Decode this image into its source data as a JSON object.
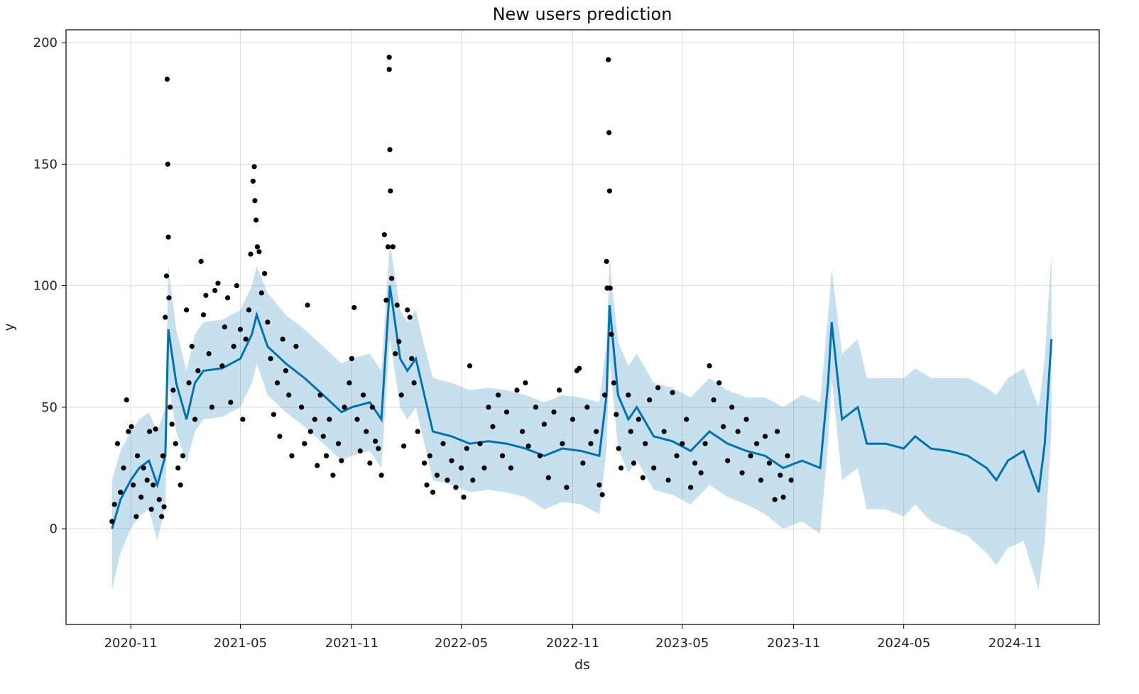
{
  "chart_data": {
    "type": "line",
    "title": "New users prediction",
    "xlabel": "ds",
    "ylabel": "y",
    "xlim": [
      "2020-07-17",
      "2025-03-20"
    ],
    "ylim": [
      -39.4,
      205.3
    ],
    "grid": true,
    "x_ticks": [
      "2020-11",
      "2021-05",
      "2021-11",
      "2022-05",
      "2022-11",
      "2023-05",
      "2023-11",
      "2024-05",
      "2024-11"
    ],
    "y_ticks": [
      0,
      50,
      100,
      150,
      200
    ],
    "colors": {
      "forecast": "#0072B2",
      "band": "#0072B2",
      "actual": "#000000",
      "grid": "#dddddd"
    },
    "forecast": {
      "name": "yhat",
      "points": [
        [
          "2020-10-01",
          0,
          -25,
          20
        ],
        [
          "2020-10-15",
          12,
          -10,
          32
        ],
        [
          "2020-11-01",
          20,
          0,
          40
        ],
        [
          "2020-11-15",
          25,
          5,
          45
        ],
        [
          "2020-12-01",
          28,
          8,
          48
        ],
        [
          "2020-12-15",
          18,
          -5,
          40
        ],
        [
          "2020-12-28",
          30,
          10,
          50
        ],
        [
          "2021-01-02",
          82,
          60,
          108
        ],
        [
          "2021-01-15",
          60,
          40,
          82
        ],
        [
          "2021-02-01",
          45,
          27,
          65
        ],
        [
          "2021-02-15",
          60,
          40,
          80
        ],
        [
          "2021-03-01",
          65,
          45,
          85
        ],
        [
          "2021-04-01",
          66,
          46,
          86
        ],
        [
          "2021-05-01",
          70,
          50,
          90
        ],
        [
          "2021-05-20",
          80,
          60,
          100
        ],
        [
          "2021-05-28",
          88,
          68,
          108
        ],
        [
          "2021-06-15",
          75,
          55,
          97
        ],
        [
          "2021-07-15",
          68,
          48,
          88
        ],
        [
          "2021-08-15",
          62,
          42,
          82
        ],
        [
          "2021-09-15",
          55,
          35,
          75
        ],
        [
          "2021-10-15",
          48,
          28,
          68
        ],
        [
          "2021-11-01",
          50,
          30,
          70
        ],
        [
          "2021-12-01",
          52,
          32,
          72
        ],
        [
          "2021-12-20",
          45,
          25,
          65
        ],
        [
          "2022-01-03",
          100,
          78,
          118
        ],
        [
          "2022-01-20",
          70,
          50,
          90
        ],
        [
          "2022-02-01",
          65,
          45,
          85
        ],
        [
          "2022-02-15",
          70,
          50,
          90
        ],
        [
          "2022-03-01",
          55,
          35,
          75
        ],
        [
          "2022-03-15",
          40,
          20,
          62
        ],
        [
          "2022-04-15",
          38,
          18,
          60
        ],
        [
          "2022-05-15",
          35,
          15,
          57
        ],
        [
          "2022-06-15",
          36,
          16,
          58
        ],
        [
          "2022-07-15",
          35,
          15,
          57
        ],
        [
          "2022-08-15",
          33,
          13,
          55
        ],
        [
          "2022-09-15",
          30,
          8,
          52
        ],
        [
          "2022-10-15",
          33,
          11,
          55
        ],
        [
          "2022-11-15",
          32,
          10,
          54
        ],
        [
          "2022-12-15",
          30,
          6,
          52
        ],
        [
          "2022-12-27",
          55,
          33,
          77
        ],
        [
          "2023-01-01",
          92,
          70,
          110
        ],
        [
          "2023-01-15",
          55,
          33,
          77
        ],
        [
          "2023-02-01",
          45,
          23,
          67
        ],
        [
          "2023-02-15",
          50,
          28,
          72
        ],
        [
          "2023-03-15",
          38,
          16,
          60
        ],
        [
          "2023-04-15",
          36,
          14,
          58
        ],
        [
          "2023-05-15",
          32,
          10,
          54
        ],
        [
          "2023-06-15",
          40,
          18,
          62
        ],
        [
          "2023-07-15",
          35,
          13,
          57
        ],
        [
          "2023-08-15",
          32,
          10,
          54
        ],
        [
          "2023-09-15",
          30,
          6,
          54
        ],
        [
          "2023-10-15",
          25,
          0,
          50
        ],
        [
          "2023-11-15",
          28,
          3,
          55
        ],
        [
          "2023-12-15",
          25,
          -2,
          52
        ],
        [
          "2023-12-28",
          60,
          35,
          88
        ],
        [
          "2024-01-03",
          85,
          62,
          107
        ],
        [
          "2024-01-20",
          45,
          20,
          72
        ],
        [
          "2024-02-15",
          50,
          25,
          78
        ],
        [
          "2024-03-01",
          35,
          8,
          62
        ],
        [
          "2024-04-01",
          35,
          8,
          62
        ],
        [
          "2024-05-01",
          33,
          5,
          62
        ],
        [
          "2024-05-20",
          38,
          10,
          66
        ],
        [
          "2024-06-15",
          33,
          3,
          62
        ],
        [
          "2024-07-15",
          32,
          0,
          62
        ],
        [
          "2024-08-15",
          30,
          -3,
          62
        ],
        [
          "2024-09-15",
          25,
          -10,
          58
        ],
        [
          "2024-10-01",
          20,
          -15,
          55
        ],
        [
          "2024-10-20",
          28,
          -8,
          62
        ],
        [
          "2024-11-15",
          32,
          -5,
          66
        ],
        [
          "2024-12-10",
          15,
          -25,
          50
        ],
        [
          "2024-12-20",
          35,
          -5,
          70
        ],
        [
          "2024-12-31",
          78,
          40,
          113
        ]
      ]
    },
    "actual": {
      "name": "y",
      "points": [
        [
          "2020-10-01",
          3
        ],
        [
          "2020-10-05",
          10
        ],
        [
          "2020-10-10",
          35
        ],
        [
          "2020-10-15",
          15
        ],
        [
          "2020-10-20",
          25
        ],
        [
          "2020-10-25",
          53
        ],
        [
          "2020-10-28",
          40
        ],
        [
          "2020-11-02",
          42
        ],
        [
          "2020-11-05",
          18
        ],
        [
          "2020-11-10",
          5
        ],
        [
          "2020-11-12",
          30
        ],
        [
          "2020-11-18",
          13
        ],
        [
          "2020-11-22",
          25
        ],
        [
          "2020-11-28",
          20
        ],
        [
          "2020-12-02",
          40
        ],
        [
          "2020-12-05",
          8
        ],
        [
          "2020-12-08",
          18
        ],
        [
          "2020-12-12",
          41
        ],
        [
          "2020-12-18",
          12
        ],
        [
          "2020-12-22",
          5
        ],
        [
          "2020-12-24",
          30
        ],
        [
          "2020-12-26",
          9
        ],
        [
          "2020-12-28",
          87
        ],
        [
          "2020-12-30",
          104
        ],
        [
          "2020-12-31",
          185
        ],
        [
          "2021-01-01",
          150
        ],
        [
          "2021-01-02",
          120
        ],
        [
          "2021-01-03",
          95
        ],
        [
          "2021-01-05",
          50
        ],
        [
          "2021-01-08",
          43
        ],
        [
          "2021-01-10",
          57
        ],
        [
          "2021-01-14",
          35
        ],
        [
          "2021-01-18",
          25
        ],
        [
          "2021-01-22",
          18
        ],
        [
          "2021-01-26",
          30
        ],
        [
          "2021-02-01",
          90
        ],
        [
          "2021-02-05",
          60
        ],
        [
          "2021-02-10",
          75
        ],
        [
          "2021-02-15",
          45
        ],
        [
          "2021-02-20",
          65
        ],
        [
          "2021-02-25",
          110
        ],
        [
          "2021-03-01",
          88
        ],
        [
          "2021-03-05",
          96
        ],
        [
          "2021-03-10",
          72
        ],
        [
          "2021-03-15",
          50
        ],
        [
          "2021-03-20",
          98
        ],
        [
          "2021-03-25",
          101
        ],
        [
          "2021-04-01",
          67
        ],
        [
          "2021-04-05",
          83
        ],
        [
          "2021-04-10",
          95
        ],
        [
          "2021-04-15",
          52
        ],
        [
          "2021-04-20",
          75
        ],
        [
          "2021-04-25",
          100
        ],
        [
          "2021-05-01",
          82
        ],
        [
          "2021-05-05",
          45
        ],
        [
          "2021-05-10",
          78
        ],
        [
          "2021-05-15",
          90
        ],
        [
          "2021-05-18",
          113
        ],
        [
          "2021-05-22",
          143
        ],
        [
          "2021-05-24",
          149
        ],
        [
          "2021-05-25",
          135
        ],
        [
          "2021-05-27",
          127
        ],
        [
          "2021-05-29",
          116
        ],
        [
          "2021-06-01",
          114
        ],
        [
          "2021-06-05",
          97
        ],
        [
          "2021-06-10",
          105
        ],
        [
          "2021-06-15",
          85
        ],
        [
          "2021-06-20",
          70
        ],
        [
          "2021-06-25",
          47
        ],
        [
          "2021-07-01",
          60
        ],
        [
          "2021-07-05",
          38
        ],
        [
          "2021-07-10",
          78
        ],
        [
          "2021-07-15",
          65
        ],
        [
          "2021-07-20",
          55
        ],
        [
          "2021-07-25",
          30
        ],
        [
          "2021-08-01",
          75
        ],
        [
          "2021-08-10",
          50
        ],
        [
          "2021-08-15",
          35
        ],
        [
          "2021-08-20",
          92
        ],
        [
          "2021-08-25",
          40
        ],
        [
          "2021-09-01",
          45
        ],
        [
          "2021-09-05",
          26
        ],
        [
          "2021-09-10",
          55
        ],
        [
          "2021-09-15",
          38
        ],
        [
          "2021-09-20",
          30
        ],
        [
          "2021-09-25",
          45
        ],
        [
          "2021-10-01",
          22
        ],
        [
          "2021-10-10",
          35
        ],
        [
          "2021-10-15",
          28
        ],
        [
          "2021-10-20",
          50
        ],
        [
          "2021-10-28",
          60
        ],
        [
          "2021-11-01",
          70
        ],
        [
          "2021-11-05",
          91
        ],
        [
          "2021-11-10",
          45
        ],
        [
          "2021-11-15",
          32
        ],
        [
          "2021-11-20",
          55
        ],
        [
          "2021-11-25",
          40
        ],
        [
          "2021-12-01",
          27
        ],
        [
          "2021-12-05",
          50
        ],
        [
          "2021-12-10",
          36
        ],
        [
          "2021-12-15",
          33
        ],
        [
          "2021-12-20",
          22
        ],
        [
          "2021-12-25",
          121
        ],
        [
          "2021-12-28",
          94
        ],
        [
          "2021-12-31",
          116
        ],
        [
          "2022-01-02",
          194
        ],
        [
          "2022-01-02",
          189
        ],
        [
          "2022-01-03",
          156
        ],
        [
          "2022-01-04",
          139
        ],
        [
          "2022-01-06",
          103
        ],
        [
          "2022-01-08",
          116
        ],
        [
          "2022-01-12",
          72
        ],
        [
          "2022-01-15",
          92
        ],
        [
          "2022-01-18",
          77
        ],
        [
          "2022-01-22",
          55
        ],
        [
          "2022-01-26",
          34
        ],
        [
          "2022-02-01",
          90
        ],
        [
          "2022-02-05",
          87
        ],
        [
          "2022-02-08",
          70
        ],
        [
          "2022-02-12",
          60
        ],
        [
          "2022-02-18",
          40
        ],
        [
          "2022-03-01",
          27
        ],
        [
          "2022-03-05",
          18
        ],
        [
          "2022-03-10",
          30
        ],
        [
          "2022-03-15",
          15
        ],
        [
          "2022-03-22",
          22
        ],
        [
          "2022-04-01",
          35
        ],
        [
          "2022-04-08",
          20
        ],
        [
          "2022-04-15",
          28
        ],
        [
          "2022-04-22",
          17
        ],
        [
          "2022-05-01",
          25
        ],
        [
          "2022-05-05",
          13
        ],
        [
          "2022-05-10",
          33
        ],
        [
          "2022-05-15",
          67
        ],
        [
          "2022-05-20",
          20
        ],
        [
          "2022-06-01",
          35
        ],
        [
          "2022-06-08",
          25
        ],
        [
          "2022-06-15",
          50
        ],
        [
          "2022-06-22",
          42
        ],
        [
          "2022-07-01",
          55
        ],
        [
          "2022-07-08",
          30
        ],
        [
          "2022-07-15",
          48
        ],
        [
          "2022-07-22",
          25
        ],
        [
          "2022-08-01",
          57
        ],
        [
          "2022-08-10",
          40
        ],
        [
          "2022-08-15",
          60
        ],
        [
          "2022-08-20",
          34
        ],
        [
          "2022-09-01",
          50
        ],
        [
          "2022-09-08",
          30
        ],
        [
          "2022-09-15",
          43
        ],
        [
          "2022-09-22",
          21
        ],
        [
          "2022-10-01",
          48
        ],
        [
          "2022-10-10",
          57
        ],
        [
          "2022-10-15",
          35
        ],
        [
          "2022-10-22",
          17
        ],
        [
          "2022-11-01",
          45
        ],
        [
          "2022-11-08",
          65
        ],
        [
          "2022-11-12",
          66
        ],
        [
          "2022-11-18",
          27
        ],
        [
          "2022-11-25",
          50
        ],
        [
          "2022-12-01",
          35
        ],
        [
          "2022-12-10",
          40
        ],
        [
          "2022-12-15",
          18
        ],
        [
          "2022-12-20",
          14
        ],
        [
          "2022-12-24",
          55
        ],
        [
          "2022-12-27",
          110
        ],
        [
          "2022-12-28",
          99
        ],
        [
          "2022-12-30",
          193
        ],
        [
          "2022-12-31",
          163
        ],
        [
          "2023-01-01",
          139
        ],
        [
          "2023-01-02",
          99
        ],
        [
          "2023-01-04",
          80
        ],
        [
          "2023-01-08",
          60
        ],
        [
          "2023-01-12",
          47
        ],
        [
          "2023-01-16",
          33
        ],
        [
          "2023-01-20",
          25
        ],
        [
          "2023-02-01",
          55
        ],
        [
          "2023-02-05",
          40
        ],
        [
          "2023-02-10",
          27
        ],
        [
          "2023-02-18",
          45
        ],
        [
          "2023-02-25",
          21
        ],
        [
          "2023-03-01",
          35
        ],
        [
          "2023-03-08",
          53
        ],
        [
          "2023-03-15",
          25
        ],
        [
          "2023-03-22",
          58
        ],
        [
          "2023-04-01",
          40
        ],
        [
          "2023-04-08",
          20
        ],
        [
          "2023-04-15",
          56
        ],
        [
          "2023-04-22",
          30
        ],
        [
          "2023-05-01",
          35
        ],
        [
          "2023-05-08",
          45
        ],
        [
          "2023-05-15",
          17
        ],
        [
          "2023-05-22",
          27
        ],
        [
          "2023-06-01",
          23
        ],
        [
          "2023-06-08",
          35
        ],
        [
          "2023-06-15",
          67
        ],
        [
          "2023-06-22",
          53
        ],
        [
          "2023-07-01",
          60
        ],
        [
          "2023-07-08",
          42
        ],
        [
          "2023-07-15",
          28
        ],
        [
          "2023-07-22",
          50
        ],
        [
          "2023-08-01",
          40
        ],
        [
          "2023-08-08",
          23
        ],
        [
          "2023-08-15",
          45
        ],
        [
          "2023-08-22",
          30
        ],
        [
          "2023-09-01",
          35
        ],
        [
          "2023-09-08",
          20
        ],
        [
          "2023-09-15",
          38
        ],
        [
          "2023-09-22",
          27
        ],
        [
          "2023-10-01",
          12
        ],
        [
          "2023-10-05",
          40
        ],
        [
          "2023-10-10",
          22
        ],
        [
          "2023-10-15",
          13
        ],
        [
          "2023-10-22",
          30
        ],
        [
          "2023-10-28",
          20
        ]
      ]
    }
  }
}
